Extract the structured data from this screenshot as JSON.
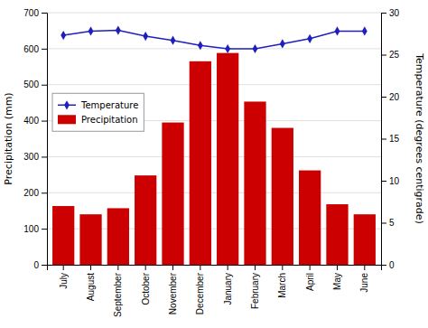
{
  "chart_data": {
    "type": "bar",
    "categories": [
      "July",
      "August",
      "September",
      "October",
      "November",
      "December",
      "January",
      "February",
      "March",
      "April",
      "May",
      "June"
    ],
    "series": [
      {
        "name": "Temperature",
        "type": "line",
        "color": "#1f1fbf",
        "marker": "diamond",
        "axis": "y2",
        "values": [
          27.3,
          27.8,
          27.9,
          27.2,
          26.7,
          26.1,
          25.7,
          25.7,
          26.3,
          26.9,
          27.8,
          27.8
        ]
      },
      {
        "name": "Precipitation",
        "type": "bar",
        "color": "#cc0000",
        "values": [
          163,
          140,
          157,
          248,
          395,
          565,
          588,
          453,
          380,
          262,
          168,
          140
        ]
      }
    ],
    "ylabel": "Precipitation (mm)",
    "y2label": "Temperature (degrees centigrade)",
    "ylim": [
      0,
      700
    ],
    "yticks": [
      0,
      100,
      200,
      300,
      400,
      500,
      600,
      700
    ],
    "y2lim": [
      0,
      30
    ],
    "y2ticks": [
      0,
      5,
      10,
      15,
      20,
      25,
      30
    ],
    "grid": true,
    "legend": "upper left"
  }
}
